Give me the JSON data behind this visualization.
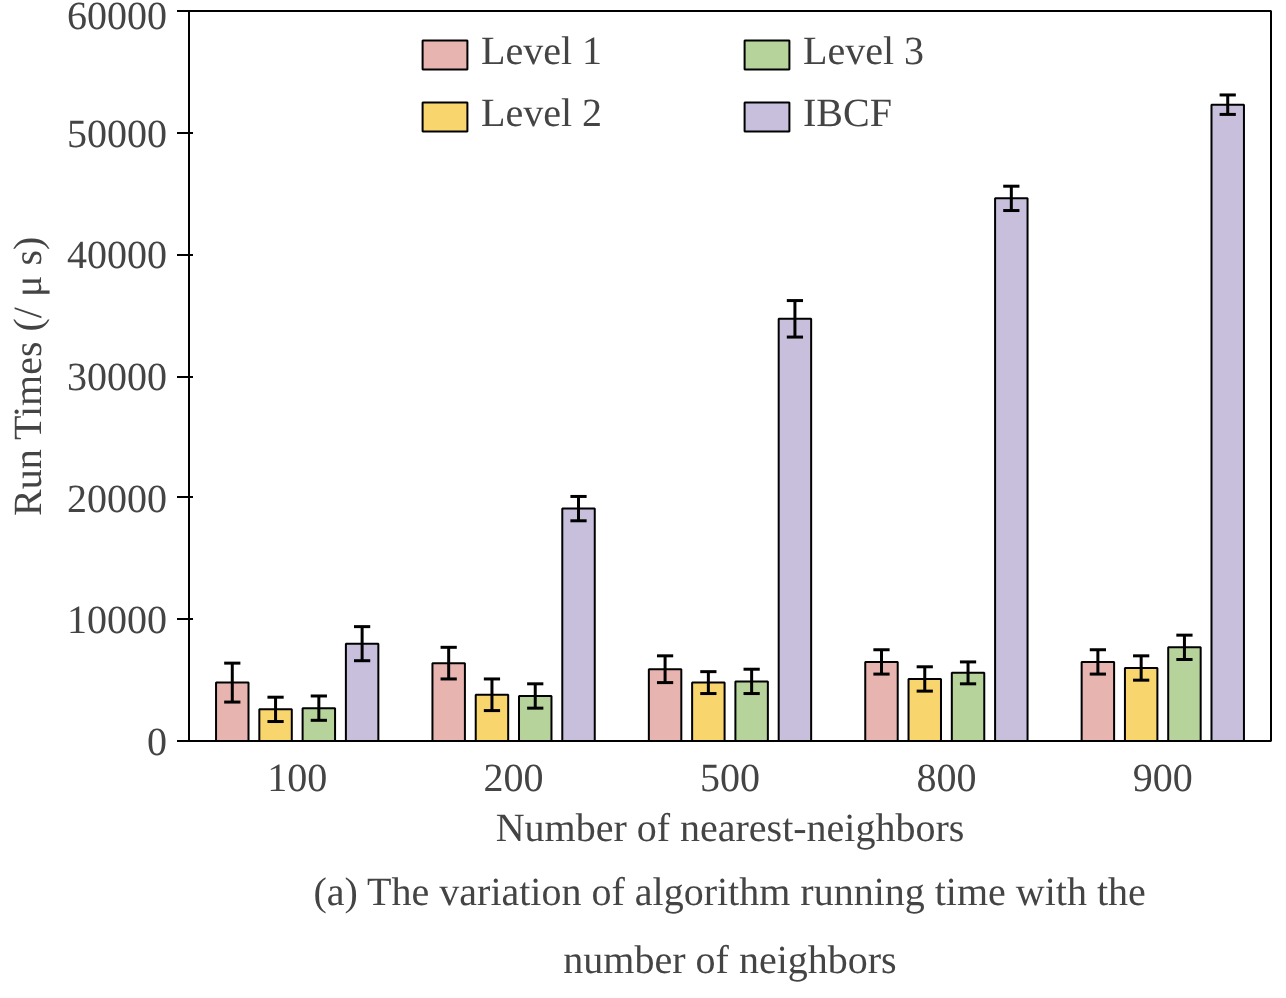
{
  "chart_data": {
    "type": "bar",
    "xlabel": "Number of nearest-neighbors",
    "ylabel": "Run Times (/ μ s)",
    "categories": [
      "100",
      "200",
      "500",
      "800",
      "900"
    ],
    "series": [
      {
        "name": "Level 1",
        "color": "#e8b4b0",
        "values": [
          4800,
          6400,
          5900,
          6500,
          6500
        ],
        "errors": [
          1600,
          1300,
          1100,
          1000,
          1000
        ]
      },
      {
        "name": "Level 2",
        "color": "#f9d56e",
        "values": [
          2600,
          3800,
          4800,
          5100,
          6000
        ],
        "errors": [
          1000,
          1300,
          900,
          1000,
          1000
        ]
      },
      {
        "name": "Level 3",
        "color": "#b5d39a",
        "values": [
          2700,
          3700,
          4900,
          5600,
          7700
        ],
        "errors": [
          1000,
          1000,
          1000,
          900,
          1000
        ]
      },
      {
        "name": "IBCF",
        "color": "#c8bfdc",
        "values": [
          8000,
          19100,
          34700,
          44600,
          52300
        ],
        "errors": [
          1400,
          1000,
          1500,
          1000,
          800
        ]
      }
    ],
    "ylim": [
      0,
      60000
    ],
    "yticks": [
      0,
      10000,
      20000,
      30000,
      40000,
      50000,
      60000
    ],
    "grid": false,
    "legend": "top",
    "annotations": [
      "(a) The variation of algorithm running time with the number of neighbors"
    ]
  }
}
